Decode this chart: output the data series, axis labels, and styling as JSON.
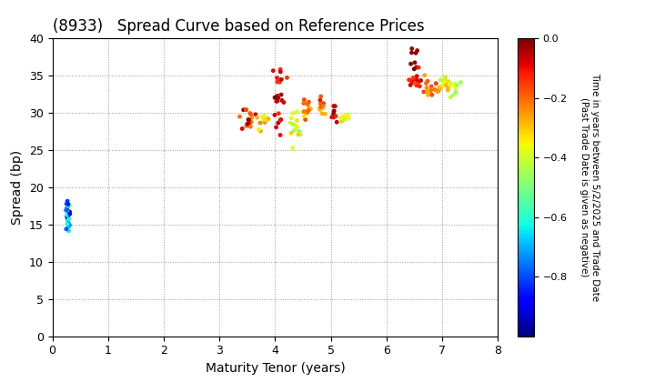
{
  "title": "(8933)   Spread Curve based on Reference Prices",
  "xlabel": "Maturity Tenor (years)",
  "ylabel": "Spread (bp)",
  "colorbar_label_line1": "Time in years between 5/2/2025 and Trade Date",
  "colorbar_label_line2": "(Past Trade Date is given as negative)",
  "xlim": [
    0,
    8
  ],
  "ylim": [
    0,
    40
  ],
  "xticks": [
    0,
    1,
    2,
    3,
    4,
    5,
    6,
    7,
    8
  ],
  "yticks": [
    0,
    5,
    10,
    15,
    20,
    25,
    30,
    35,
    40
  ],
  "cmap": "jet",
  "vmin": -1.0,
  "vmax": 0.0,
  "clusters": [
    {
      "x_center": 0.28,
      "y_center": 16.5,
      "x_std": 0.018,
      "y_std": 1.2,
      "n_points": 35,
      "color_range": [
        -0.95,
        -0.55
      ]
    },
    {
      "x_center": 3.55,
      "y_center": 29.0,
      "x_std": 0.07,
      "y_std": 1.0,
      "n_points": 18,
      "color_range": [
        -0.25,
        0.0
      ]
    },
    {
      "x_center": 3.75,
      "y_center": 28.5,
      "x_std": 0.05,
      "y_std": 0.8,
      "n_points": 10,
      "color_range": [
        -0.4,
        -0.2
      ]
    },
    {
      "x_center": 4.05,
      "y_center": 31.5,
      "x_std": 0.06,
      "y_std": 3.0,
      "n_points": 25,
      "color_range": [
        -0.15,
        0.0
      ]
    },
    {
      "x_center": 4.35,
      "y_center": 28.5,
      "x_std": 0.05,
      "y_std": 1.0,
      "n_points": 15,
      "color_range": [
        -0.5,
        -0.3
      ]
    },
    {
      "x_center": 4.55,
      "y_center": 30.5,
      "x_std": 0.06,
      "y_std": 0.8,
      "n_points": 15,
      "color_range": [
        -0.35,
        -0.15
      ]
    },
    {
      "x_center": 4.85,
      "y_center": 31.0,
      "x_std": 0.05,
      "y_std": 0.8,
      "n_points": 12,
      "color_range": [
        -0.3,
        -0.1
      ]
    },
    {
      "x_center": 5.05,
      "y_center": 29.8,
      "x_std": 0.04,
      "y_std": 0.5,
      "n_points": 10,
      "color_range": [
        -0.15,
        -0.02
      ]
    },
    {
      "x_center": 5.25,
      "y_center": 29.5,
      "x_std": 0.04,
      "y_std": 0.4,
      "n_points": 8,
      "color_range": [
        -0.45,
        -0.3
      ]
    },
    {
      "x_center": 6.45,
      "y_center": 37.5,
      "x_std": 0.05,
      "y_std": 0.8,
      "n_points": 8,
      "color_range": [
        -0.04,
        0.0
      ]
    },
    {
      "x_center": 6.55,
      "y_center": 34.5,
      "x_std": 0.07,
      "y_std": 0.8,
      "n_points": 14,
      "color_range": [
        -0.18,
        -0.05
      ]
    },
    {
      "x_center": 6.8,
      "y_center": 33.5,
      "x_std": 0.08,
      "y_std": 0.8,
      "n_points": 16,
      "color_range": [
        -0.3,
        -0.15
      ]
    },
    {
      "x_center": 7.1,
      "y_center": 33.8,
      "x_std": 0.08,
      "y_std": 0.7,
      "n_points": 14,
      "color_range": [
        -0.45,
        -0.25
      ]
    },
    {
      "x_center": 7.25,
      "y_center": 33.5,
      "x_std": 0.05,
      "y_std": 0.5,
      "n_points": 8,
      "color_range": [
        -0.5,
        -0.35
      ]
    }
  ],
  "background_color": "#ffffff",
  "grid_color": "#999999",
  "marker_size": 12,
  "marker": "o",
  "title_fontsize": 12,
  "label_fontsize": 10,
  "tick_fontsize": 9,
  "cbar_tick_fontsize": 8,
  "cbar_label_fontsize": 7.5
}
